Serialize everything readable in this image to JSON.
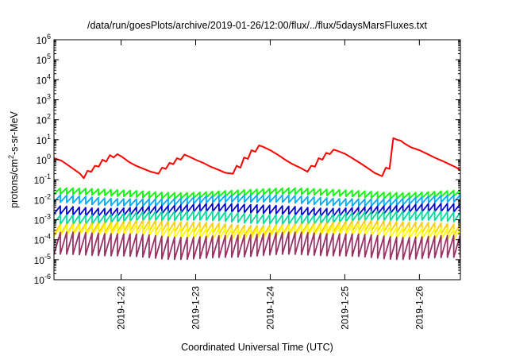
{
  "chart_data": {
    "type": "line",
    "title": "/data/run/goesPlots/archive/2019-01-26/12:00/flux/../flux/5daysMarsFluxes.txt",
    "xlabel": "Coordinated Universal Time (UTC)",
    "ylabel": {
      "prefix": "protons/cm",
      "sup": "2",
      "suffix": "-s-sr-MeV"
    },
    "yscale": "log",
    "ylim_exponent": [
      -6,
      6
    ],
    "ytick_base": "10",
    "yticks": [
      -6,
      -5,
      -4,
      -3,
      -2,
      -1,
      0,
      1,
      2,
      3,
      4,
      5,
      6
    ],
    "xlim_days": [
      21.1,
      26.55
    ],
    "xticks": [
      {
        "day": 22,
        "label": "2019-1-22"
      },
      {
        "day": 23,
        "label": "2019-1-23"
      },
      {
        "day": 24,
        "label": "2019-1-24"
      },
      {
        "day": 25,
        "label": "2019-1-25"
      },
      {
        "day": 26,
        "label": "2019-1-26"
      }
    ],
    "grid": false,
    "series": [
      {
        "color": "#ff0000",
        "x": [
          21.1,
          21.2,
          21.3,
          21.45,
          21.5,
          21.55,
          21.6,
          21.65,
          21.7,
          21.75,
          21.8,
          21.85,
          21.9,
          21.95,
          22.0,
          22.05,
          22.1,
          22.2,
          22.3,
          22.4,
          22.5,
          22.55,
          22.6,
          22.65,
          22.7,
          22.75,
          22.8,
          22.85,
          22.9,
          23.0,
          23.1,
          23.2,
          23.3,
          23.4,
          23.5,
          23.55,
          23.6,
          23.65,
          23.7,
          23.75,
          23.8,
          23.85,
          23.9,
          24.0,
          24.1,
          24.2,
          24.3,
          24.4,
          24.5,
          24.55,
          24.6,
          24.65,
          24.7,
          24.75,
          24.8,
          24.85,
          24.9,
          25.0,
          25.1,
          25.2,
          25.3,
          25.4,
          25.5,
          25.55,
          25.6,
          25.65,
          25.7,
          25.75,
          25.8,
          25.85,
          25.9,
          26.0,
          26.1,
          26.2,
          26.3,
          26.4,
          26.5,
          26.55
        ],
        "y": [
          1.2,
          0.9,
          0.5,
          0.2,
          0.12,
          0.28,
          0.25,
          0.5,
          0.45,
          1.0,
          0.8,
          1.7,
          1.3,
          1.9,
          1.5,
          1.1,
          0.8,
          0.5,
          0.35,
          0.25,
          0.2,
          0.4,
          0.35,
          0.7,
          0.6,
          1.2,
          1.0,
          1.8,
          1.5,
          1.0,
          0.7,
          0.45,
          0.32,
          0.22,
          0.2,
          0.5,
          0.4,
          1.3,
          1.1,
          3.0,
          2.5,
          5.2,
          4.5,
          3.0,
          1.8,
          1.0,
          0.6,
          0.4,
          0.25,
          0.5,
          0.45,
          1.2,
          1.0,
          2.2,
          1.9,
          3.2,
          2.8,
          2.0,
          1.2,
          0.7,
          0.4,
          0.22,
          0.15,
          0.4,
          0.35,
          12.0,
          10.0,
          9.0,
          6.5,
          5.0,
          4.0,
          3.0,
          2.0,
          1.3,
          0.9,
          0.6,
          0.4,
          0.3
        ]
      },
      {
        "color": "#00ff00",
        "base": 0.03,
        "depth": 0.5,
        "period": 0.085,
        "slope": 0.02
      },
      {
        "color": "#00aaff",
        "base": 0.014,
        "depth": 0.45,
        "period": 0.085,
        "slope": 0.03
      },
      {
        "color": "#0000dd",
        "base": 0.005,
        "depth": 0.4,
        "period": 0.085,
        "slope": 0.03
      },
      {
        "color": "#00dd99",
        "base": 0.0022,
        "depth": 0.35,
        "period": 0.085,
        "slope": 0.04
      },
      {
        "color": "#ffcc00",
        "base": 0.0007,
        "depth": 0.3,
        "period": 0.085,
        "slope": 0.05
      },
      {
        "color": "#ffff00",
        "base": 0.00045,
        "depth": 0.3,
        "period": 0.085,
        "slope": 0.05
      },
      {
        "color": "#993366",
        "base": 0.00018,
        "depth": 0.08,
        "period": 0.085,
        "slope": 0.06
      }
    ]
  }
}
